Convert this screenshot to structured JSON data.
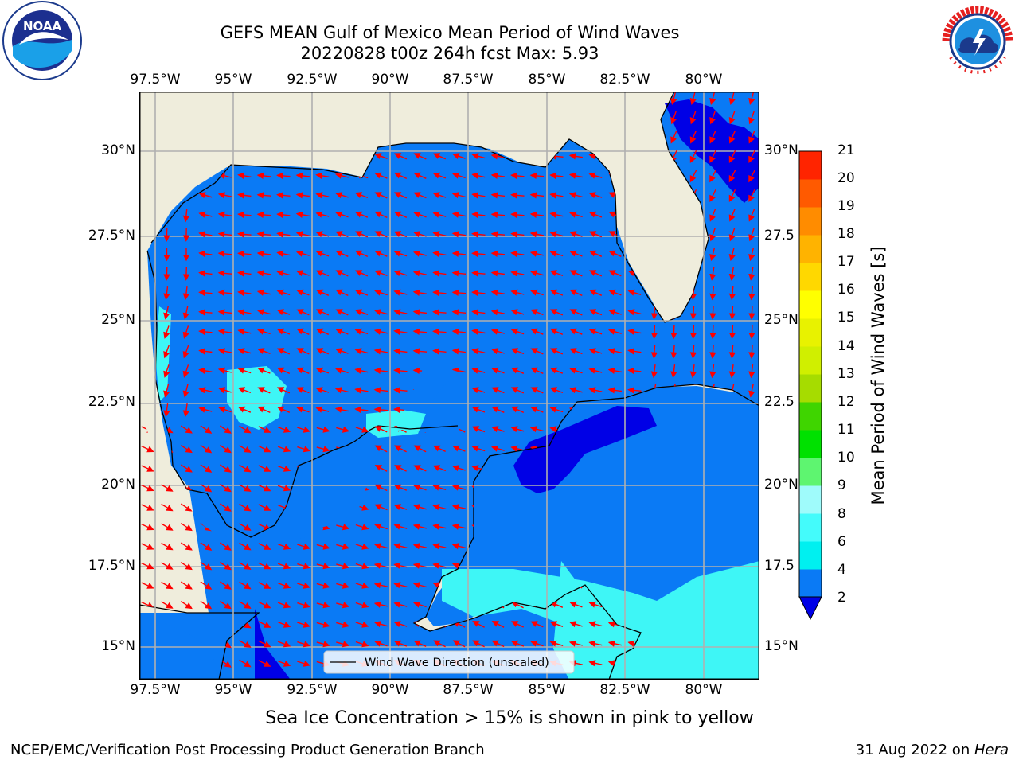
{
  "title_line1": "GEFS MEAN Gulf of Mexico Mean Period of Wind Waves",
  "title_line2": "20220828 t00z 264h fcst   Max: 5.93",
  "logos": {
    "noaa_text": "NOAA",
    "noaa_ring_top": "NATIONAL OCEANIC AND ATMOSPHERIC ADMINISTRATION",
    "noaa_ring_bottom": "U.S. DEPARTMENT OF COMMERCE",
    "nws_ring": "NATIONAL WEATHER SERVICE"
  },
  "map": {
    "lon_ticks": [
      "97.5°W",
      "95°W",
      "92.5°W",
      "90°W",
      "87.5°W",
      "85°W",
      "82.5°W",
      "80°W"
    ],
    "lat_ticks_left": [
      "30°N",
      "27.5°N",
      "25°N",
      "22.5°N",
      "20°N",
      "17.5°N",
      "15°N"
    ],
    "lat_ticks_right": [
      "30°N",
      "27.5",
      "25°N",
      "22.5",
      "20°N",
      "17.5",
      "15°N"
    ],
    "legend_label": "Wind Wave Direction (unscaled)",
    "colors": {
      "land": "#efeddc",
      "water_2_4": "#0a7af5",
      "water_lt2": "#0000e6",
      "water_4_6": "#3ef6f6",
      "arrow": "#ff0000"
    }
  },
  "colorbar": {
    "label": "Mean Period of Wind Waves [s]",
    "ticks": [
      "2",
      "4",
      "6",
      "8",
      "9",
      "10",
      "11",
      "12",
      "13",
      "14",
      "15",
      "16",
      "17",
      "18",
      "19",
      "20",
      "21"
    ],
    "colors": [
      "#0a7af5",
      "#00f0f0",
      "#44fbfb",
      "#9ffbfb",
      "#5ef570",
      "#00e100",
      "#3fd500",
      "#a6dc00",
      "#d0ef00",
      "#e8f200",
      "#ffff00",
      "#ffd800",
      "#ffb300",
      "#ff8c00",
      "#ff5a00",
      "#ff2400"
    ],
    "under_color": "#0000e6"
  },
  "notes": {
    "sea_ice": "Sea Ice Concentration > 15% is shown in pink to yellow"
  },
  "footer": {
    "left": "NCEP/EMC/Verification Post Processing Product Generation Branch",
    "right_date": "31 Aug 2022 on ",
    "right_host": "Hera"
  }
}
